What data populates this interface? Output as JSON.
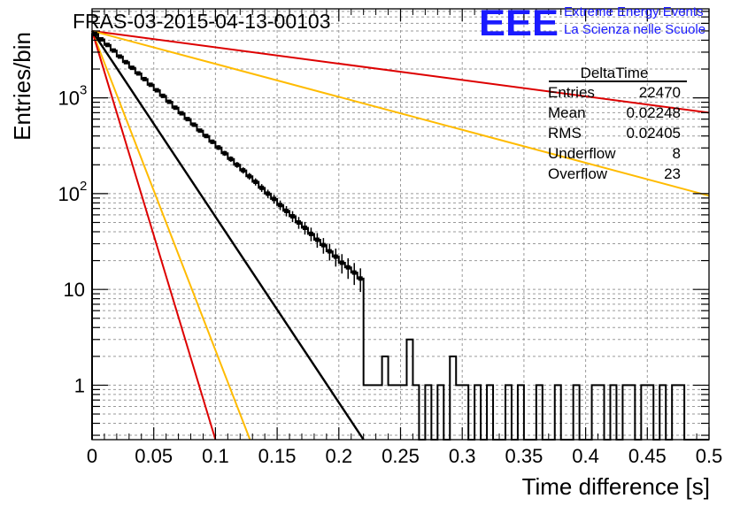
{
  "title": "FRAS-03-2015-04-13-00103",
  "logo": {
    "mark": "EEE",
    "line1": "Extreme Energy Events",
    "line2": "La Scienza nelle Scuole",
    "color": "#1a1aff"
  },
  "stats": {
    "name": "DeltaTime",
    "rows": [
      {
        "label": "Entries",
        "value": "22470"
      },
      {
        "label": "Mean",
        "value": "0.02248"
      },
      {
        "label": "RMS",
        "value": "0.02405"
      },
      {
        "label": "Underflow",
        "value": "8"
      },
      {
        "label": "Overflow",
        "value": "23"
      }
    ]
  },
  "chart_data": {
    "type": "line",
    "xlabel": "Time difference [s]",
    "ylabel": "Entries/bin",
    "xlim": [
      0,
      0.5
    ],
    "ylim": [
      0.27,
      8500
    ],
    "yscale": "log",
    "grid": true,
    "x_ticks": [
      "0",
      "0.05",
      "0.1",
      "0.15",
      "0.2",
      "0.25",
      "0.3",
      "0.35",
      "0.4",
      "0.45",
      "0.5"
    ],
    "y_ticks": [
      {
        "value": 1,
        "label": "1"
      },
      {
        "value": 10,
        "label": "10"
      },
      {
        "value": 100,
        "label": "10",
        "exp": "2"
      },
      {
        "value": 1000,
        "label": "10",
        "exp": "3"
      }
    ],
    "histogram": {
      "bin_width": 0.005,
      "color": "#000000",
      "data_start": 0,
      "data_end": 0.22,
      "data_points": [
        [
          0.0025,
          4650
        ],
        [
          0.0075,
          4080
        ],
        [
          0.0125,
          3570
        ],
        [
          0.0175,
          3120
        ],
        [
          0.0225,
          2700
        ],
        [
          0.0275,
          2360
        ],
        [
          0.0325,
          2060
        ],
        [
          0.0375,
          1800
        ],
        [
          0.0425,
          1570
        ],
        [
          0.0475,
          1370
        ],
        [
          0.0525,
          1200
        ],
        [
          0.0575,
          1050
        ],
        [
          0.0625,
          910
        ],
        [
          0.0675,
          790
        ],
        [
          0.0725,
          690
        ],
        [
          0.0775,
          600
        ],
        [
          0.0825,
          525
        ],
        [
          0.0875,
          455
        ],
        [
          0.0925,
          400
        ],
        [
          0.0975,
          348
        ],
        [
          0.1025,
          303
        ],
        [
          0.1075,
          264
        ],
        [
          0.1125,
          230
        ],
        [
          0.1175,
          200
        ],
        [
          0.1225,
          175
        ],
        [
          0.1275,
          152
        ],
        [
          0.1325,
          133
        ],
        [
          0.1375,
          115
        ],
        [
          0.1425,
          100
        ],
        [
          0.1475,
          88
        ],
        [
          0.1525,
          76
        ],
        [
          0.1575,
          66
        ],
        [
          0.1625,
          58
        ],
        [
          0.1675,
          50
        ],
        [
          0.1725,
          44
        ],
        [
          0.1775,
          38
        ],
        [
          0.1825,
          33
        ],
        [
          0.1875,
          29
        ],
        [
          0.1925,
          25
        ],
        [
          0.1975,
          22
        ],
        [
          0.2025,
          19
        ],
        [
          0.2075,
          17
        ],
        [
          0.2125,
          15
        ],
        [
          0.2175,
          13
        ]
      ],
      "late_bins": [
        [
          0.22,
          1
        ],
        [
          0.225,
          1
        ],
        [
          0.23,
          1
        ],
        [
          0.235,
          2
        ],
        [
          0.24,
          1
        ],
        [
          0.245,
          1
        ],
        [
          0.25,
          1
        ],
        [
          0.255,
          3
        ],
        [
          0.26,
          1
        ],
        [
          0.265,
          0.27
        ],
        [
          0.27,
          1
        ],
        [
          0.275,
          0.27
        ],
        [
          0.28,
          1
        ],
        [
          0.285,
          0.27
        ],
        [
          0.29,
          2
        ],
        [
          0.295,
          1
        ],
        [
          0.3,
          1
        ],
        [
          0.305,
          0.27
        ],
        [
          0.31,
          1
        ],
        [
          0.315,
          0.27
        ],
        [
          0.32,
          1
        ],
        [
          0.325,
          0.27
        ],
        [
          0.33,
          0.27
        ],
        [
          0.335,
          1
        ],
        [
          0.34,
          0.27
        ],
        [
          0.345,
          1
        ],
        [
          0.35,
          0.27
        ],
        [
          0.355,
          0.27
        ],
        [
          0.36,
          1
        ],
        [
          0.365,
          0.27
        ],
        [
          0.37,
          0.27
        ],
        [
          0.375,
          1
        ],
        [
          0.38,
          0.27
        ],
        [
          0.385,
          0.27
        ],
        [
          0.39,
          1
        ],
        [
          0.395,
          0.27
        ],
        [
          0.4,
          0.27
        ],
        [
          0.405,
          1
        ],
        [
          0.41,
          1
        ],
        [
          0.415,
          0.27
        ],
        [
          0.42,
          1
        ],
        [
          0.425,
          0.27
        ],
        [
          0.43,
          1
        ],
        [
          0.435,
          1
        ],
        [
          0.44,
          0.27
        ],
        [
          0.445,
          1
        ],
        [
          0.45,
          1
        ],
        [
          0.455,
          0.27
        ],
        [
          0.46,
          1
        ],
        [
          0.465,
          0.27
        ],
        [
          0.47,
          1
        ],
        [
          0.475,
          1
        ],
        [
          0.48,
          0.27
        ],
        [
          0.485,
          0.27
        ],
        [
          0.49,
          0.27
        ],
        [
          0.495,
          0.27
        ]
      ]
    },
    "series": [
      {
        "color": "#000000",
        "x": [
          0,
          0.22
        ],
        "y": [
          5000,
          0.27
        ]
      },
      {
        "color": "#dd0000",
        "x": [
          0,
          0.5
        ],
        "y": [
          5000,
          700
        ]
      },
      {
        "color": "#ffbb00",
        "x": [
          0,
          0.5
        ],
        "y": [
          5000,
          95
        ]
      },
      {
        "color": "#ffbb00",
        "x": [
          0,
          0.128
        ],
        "y": [
          5000,
          0.27
        ]
      },
      {
        "color": "#dd0000",
        "x": [
          0,
          0.1
        ],
        "y": [
          5000,
          0.27
        ]
      }
    ]
  }
}
